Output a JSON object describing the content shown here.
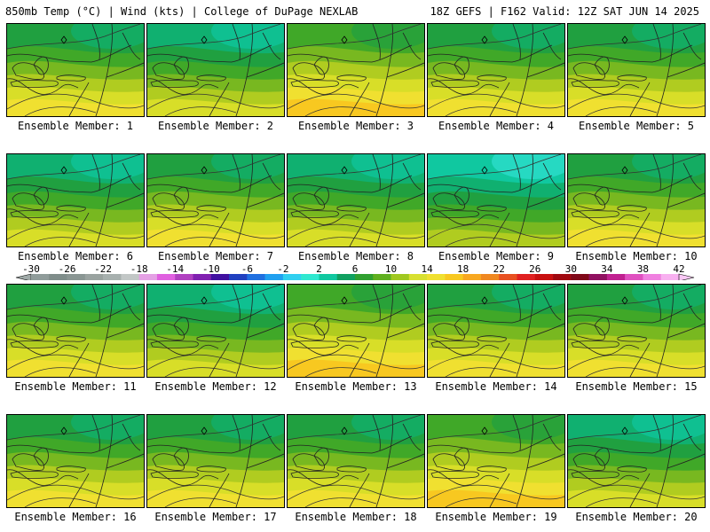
{
  "header": {
    "left_title": "850mb Temp (°C) | Wind (kts) | College of DuPage NEXLAB",
    "right_title": "18Z GEFS | F162 Valid: 12Z SAT JUN 14 2025"
  },
  "panels": [
    {
      "label": "Ensemble Member: 1",
      "warmth": 0.55
    },
    {
      "label": "Ensemble Member: 2",
      "warmth": 0.45
    },
    {
      "label": "Ensemble Member: 3",
      "warmth": 0.7
    },
    {
      "label": "Ensemble Member: 4",
      "warmth": 0.55
    },
    {
      "label": "Ensemble Member: 5",
      "warmth": 0.6
    },
    {
      "label": "Ensemble Member: 6",
      "warmth": 0.45
    },
    {
      "label": "Ensemble Member: 7",
      "warmth": 0.6
    },
    {
      "label": "Ensemble Member: 8",
      "warmth": 0.35
    },
    {
      "label": "Ensemble Member: 9",
      "warmth": 0.25
    },
    {
      "label": "Ensemble Member: 10",
      "warmth": 0.5
    },
    {
      "label": "Ensemble Member: 11",
      "warmth": 0.6
    },
    {
      "label": "Ensemble Member: 12",
      "warmth": 0.3
    },
    {
      "label": "Ensemble Member: 13",
      "warmth": 0.75
    },
    {
      "label": "Ensemble Member: 14",
      "warmth": 0.55
    },
    {
      "label": "Ensemble Member: 15",
      "warmth": 0.6
    },
    {
      "label": "Ensemble Member: 16",
      "warmth": 0.65
    },
    {
      "label": "Ensemble Member: 17",
      "warmth": 0.55
    },
    {
      "label": "Ensemble Member: 18",
      "warmth": 0.55
    },
    {
      "label": "Ensemble Member: 19",
      "warmth": 0.75
    },
    {
      "label": "Ensemble Member: 20",
      "warmth": 0.45
    }
  ],
  "colorbar": {
    "colors": [
      "#909c9a",
      "#7f8d8a",
      "#8a9693",
      "#9aa3a0",
      "#a7b0ae",
      "#c2c7c6",
      "#e4a0e4",
      "#e060e0",
      "#b040c0",
      "#8020b0",
      "#4010a0",
      "#2040c0",
      "#2070e0",
      "#20a0f0",
      "#30d0f0",
      "#30e8d0",
      "#10c8a0",
      "#10a060",
      "#30a030",
      "#60b020",
      "#a0c820",
      "#d8e030",
      "#f0e030",
      "#f8c820",
      "#f8a820",
      "#f08820",
      "#e85020",
      "#e02020",
      "#c81010",
      "#a00810",
      "#800818",
      "#901060",
      "#c02090",
      "#e050c0",
      "#f080e0",
      "#f8b0f0"
    ],
    "labels": [
      "-30",
      "-26",
      "-22",
      "-18",
      "-14",
      "-10",
      "-6",
      "-2",
      "2",
      "6",
      "10",
      "14",
      "18",
      "22",
      "26",
      "30",
      "34",
      "38",
      "42"
    ]
  }
}
